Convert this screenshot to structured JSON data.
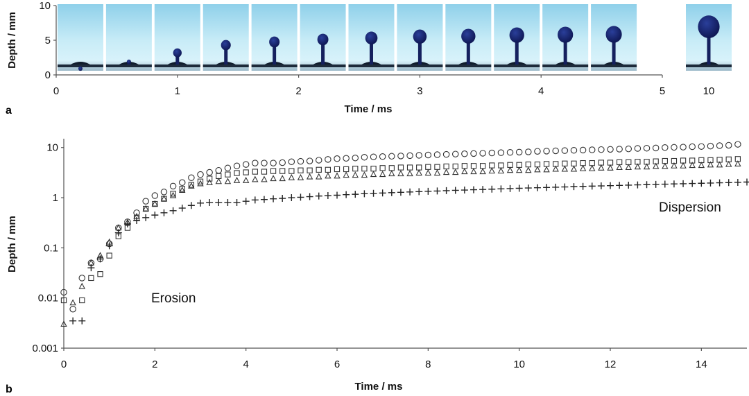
{
  "chart_data": [
    {
      "panel": "a",
      "type": "image_strip",
      "xlabel": "Time / ms",
      "ylabel": "Depth / mm",
      "x_ticks": [
        "0",
        "1",
        "2",
        "3",
        "4",
        "5"
      ],
      "extra_tick": "10",
      "y_ticks": [
        "0",
        "5",
        "10"
      ],
      "xlim": [
        0,
        5
      ],
      "ylim": [
        0,
        10
      ],
      "frames": [
        {
          "t": 0.2,
          "depth": 1.2,
          "head": 0.0
        },
        {
          "t": 0.6,
          "depth": 2.2,
          "head": 0.0
        },
        {
          "t": 1.0,
          "depth": 3.8,
          "head": 0.35
        },
        {
          "t": 1.4,
          "depth": 5.0,
          "head": 0.45
        },
        {
          "t": 1.8,
          "depth": 5.5,
          "head": 0.5
        },
        {
          "t": 2.2,
          "depth": 5.9,
          "head": 0.55
        },
        {
          "t": 2.6,
          "depth": 6.2,
          "head": 0.65
        },
        {
          "t": 3.0,
          "depth": 6.5,
          "head": 0.75
        },
        {
          "t": 3.4,
          "depth": 6.6,
          "head": 0.8
        },
        {
          "t": 3.8,
          "depth": 6.8,
          "head": 0.85
        },
        {
          "t": 4.2,
          "depth": 6.9,
          "head": 0.9
        },
        {
          "t": 4.6,
          "depth": 7.0,
          "head": 0.95
        },
        {
          "t": 10,
          "depth": 8.5,
          "head": 1.4
        }
      ]
    },
    {
      "panel": "b",
      "type": "scatter",
      "xlabel": "Time / ms",
      "ylabel": "Depth / mm",
      "yscale": "log",
      "xlim": [
        0,
        15
      ],
      "ylim": [
        0.001,
        15
      ],
      "x_ticks": [
        "0",
        "2",
        "4",
        "6",
        "8",
        "10",
        "12",
        "14"
      ],
      "y_ticks": [
        "0.001",
        "0.01",
        "0.1",
        "1",
        "10"
      ],
      "annotations": [
        "Erosion",
        "Dispersion"
      ],
      "series": [
        {
          "name": "circle",
          "marker": "circle",
          "x": [
            0,
            0.2,
            0.4,
            0.6,
            0.8,
            1.0,
            1.2,
            1.4,
            1.6,
            1.8,
            2.0,
            2.2,
            2.4,
            2.6,
            2.8,
            3.0,
            3.2,
            3.4,
            3.6,
            3.8,
            4.0,
            4.2,
            4.4,
            4.6,
            4.8,
            5.0,
            5.2,
            5.4,
            5.6,
            5.8,
            6.0,
            6.2,
            6.4,
            6.6,
            6.8,
            7.0,
            7.2,
            7.4,
            7.6,
            7.8,
            8.0,
            8.2,
            8.4,
            8.6,
            8.8,
            9.0,
            9.2,
            9.4,
            9.6,
            9.8,
            10.0,
            10.2,
            10.4,
            10.6,
            10.8,
            11.0,
            11.2,
            11.4,
            11.6,
            11.8,
            12.0,
            12.2,
            12.4,
            12.6,
            12.8,
            13.0,
            13.2,
            13.4,
            13.6,
            13.8,
            14.0,
            14.2,
            14.4,
            14.6,
            14.8
          ],
          "y": [
            0.013,
            0.006,
            0.025,
            0.05,
            0.06,
            0.12,
            0.25,
            0.33,
            0.5,
            0.85,
            1.1,
            1.3,
            1.7,
            2.0,
            2.5,
            2.9,
            3.2,
            3.5,
            3.9,
            4.3,
            4.6,
            4.9,
            4.9,
            4.9,
            5.0,
            5.2,
            5.3,
            5.4,
            5.6,
            5.8,
            6.0,
            6.1,
            6.2,
            6.4,
            6.5,
            6.6,
            6.7,
            6.8,
            6.9,
            7.0,
            7.1,
            7.2,
            7.3,
            7.4,
            7.5,
            7.6,
            7.7,
            7.8,
            7.9,
            8.0,
            8.1,
            8.2,
            8.4,
            8.5,
            8.6,
            8.7,
            8.8,
            8.9,
            9.0,
            9.1,
            9.2,
            9.3,
            9.4,
            9.6,
            9.7,
            9.8,
            10.0,
            10.1,
            10.2,
            10.4,
            10.5,
            10.7,
            10.9,
            11.1,
            11.6
          ]
        },
        {
          "name": "square",
          "marker": "square",
          "x": [
            0,
            0.4,
            0.6,
            0.8,
            1.0,
            1.2,
            1.4,
            1.6,
            1.8,
            2.0,
            2.2,
            2.4,
            2.6,
            2.8,
            3.0,
            3.2,
            3.4,
            3.6,
            3.8,
            4.0,
            4.2,
            4.4,
            4.6,
            4.8,
            5.0,
            5.2,
            5.4,
            5.6,
            5.8,
            6.0,
            6.2,
            6.4,
            6.6,
            6.8,
            7.0,
            7.2,
            7.4,
            7.6,
            7.8,
            8.0,
            8.2,
            8.4,
            8.6,
            8.8,
            9.0,
            9.2,
            9.4,
            9.6,
            9.8,
            10.0,
            10.2,
            10.4,
            10.6,
            10.8,
            11.0,
            11.2,
            11.4,
            11.6,
            11.8,
            12.0,
            12.2,
            12.4,
            12.6,
            12.8,
            13.0,
            13.2,
            13.4,
            13.6,
            13.8,
            14.0,
            14.2,
            14.4,
            14.6,
            14.8
          ],
          "y": [
            0.009,
            0.009,
            0.025,
            0.03,
            0.07,
            0.17,
            0.25,
            0.4,
            0.6,
            0.75,
            0.95,
            1.2,
            1.5,
            1.8,
            2.1,
            2.4,
            2.7,
            2.9,
            3.1,
            3.2,
            3.3,
            3.3,
            3.4,
            3.4,
            3.4,
            3.5,
            3.5,
            3.6,
            3.6,
            3.7,
            3.7,
            3.8,
            3.8,
            3.8,
            3.9,
            3.9,
            4.0,
            4.0,
            4.0,
            4.1,
            4.1,
            4.2,
            4.2,
            4.3,
            4.3,
            4.3,
            4.4,
            4.4,
            4.5,
            4.5,
            4.6,
            4.6,
            4.7,
            4.7,
            4.8,
            4.8,
            4.9,
            4.9,
            5.0,
            5.0,
            5.1,
            5.1,
            5.2,
            5.2,
            5.3,
            5.4,
            5.4,
            5.5,
            5.5,
            5.6,
            5.6,
            5.7,
            5.8,
            5.9
          ]
        },
        {
          "name": "triangle",
          "marker": "triangle",
          "x": [
            0,
            0.2,
            0.4,
            0.6,
            0.8,
            1.0,
            1.2,
            1.4,
            1.6,
            1.8,
            2.0,
            2.2,
            2.4,
            2.6,
            2.8,
            3.0,
            3.2,
            3.4,
            3.6,
            3.8,
            4.0,
            4.2,
            4.4,
            4.6,
            4.8,
            5.0,
            5.2,
            5.4,
            5.6,
            5.8,
            6.0,
            6.2,
            6.4,
            6.6,
            6.8,
            7.0,
            7.2,
            7.4,
            7.6,
            7.8,
            8.0,
            8.2,
            8.4,
            8.6,
            8.8,
            9.0,
            9.2,
            9.4,
            9.6,
            9.8,
            10.0,
            10.2,
            10.4,
            10.6,
            10.8,
            11.0,
            11.2,
            11.4,
            11.6,
            11.8,
            12.0,
            12.2,
            12.4,
            12.6,
            12.8,
            13.0,
            13.2,
            13.4,
            13.6,
            13.8,
            14.0,
            14.2,
            14.4,
            14.6,
            14.8
          ],
          "y": [
            0.003,
            0.008,
            0.017,
            0.05,
            0.07,
            0.13,
            0.25,
            0.32,
            0.42,
            0.6,
            0.75,
            0.95,
            1.1,
            1.4,
            1.7,
            1.9,
            2.0,
            2.1,
            2.1,
            2.2,
            2.2,
            2.3,
            2.3,
            2.4,
            2.4,
            2.5,
            2.5,
            2.6,
            2.6,
            2.7,
            2.7,
            2.8,
            2.8,
            2.8,
            2.9,
            2.9,
            3.0,
            3.0,
            3.0,
            3.1,
            3.1,
            3.1,
            3.2,
            3.2,
            3.3,
            3.3,
            3.3,
            3.4,
            3.4,
            3.5,
            3.5,
            3.5,
            3.6,
            3.6,
            3.7,
            3.7,
            3.7,
            3.8,
            3.8,
            3.9,
            3.9,
            4.0,
            4.0,
            4.1,
            4.1,
            4.2,
            4.2,
            4.3,
            4.3,
            4.4,
            4.4,
            4.5,
            4.5,
            4.6,
            4.7
          ]
        },
        {
          "name": "plus",
          "marker": "plus",
          "x": [
            0.2,
            0.4,
            0.6,
            0.8,
            1.0,
            1.2,
            1.4,
            1.6,
            1.8,
            2.0,
            2.2,
            2.4,
            2.6,
            2.8,
            3.0,
            3.2,
            3.4,
            3.6,
            3.8,
            4.0,
            4.2,
            4.4,
            4.6,
            4.8,
            5.0,
            5.2,
            5.4,
            5.6,
            5.8,
            6.0,
            6.2,
            6.4,
            6.6,
            6.8,
            7.0,
            7.2,
            7.4,
            7.6,
            7.8,
            8.0,
            8.2,
            8.4,
            8.6,
            8.8,
            9.0,
            9.2,
            9.4,
            9.6,
            9.8,
            10.0,
            10.2,
            10.4,
            10.6,
            10.8,
            11.0,
            11.2,
            11.4,
            11.6,
            11.8,
            12.0,
            12.2,
            12.4,
            12.6,
            12.8,
            13.0,
            13.2,
            13.4,
            13.6,
            13.8,
            14.0,
            14.2,
            14.4,
            14.6,
            14.8,
            15.0
          ],
          "y": [
            0.0035,
            0.0035,
            0.04,
            0.06,
            0.11,
            0.2,
            0.3,
            0.35,
            0.4,
            0.45,
            0.5,
            0.55,
            0.62,
            0.7,
            0.78,
            0.8,
            0.8,
            0.8,
            0.8,
            0.85,
            0.9,
            0.92,
            0.95,
            0.97,
            1.0,
            1.02,
            1.05,
            1.08,
            1.1,
            1.12,
            1.15,
            1.17,
            1.2,
            1.22,
            1.24,
            1.26,
            1.28,
            1.3,
            1.32,
            1.34,
            1.36,
            1.38,
            1.4,
            1.42,
            1.44,
            1.46,
            1.48,
            1.5,
            1.52,
            1.54,
            1.56,
            1.58,
            1.6,
            1.62,
            1.64,
            1.66,
            1.68,
            1.7,
            1.72,
            1.74,
            1.76,
            1.78,
            1.8,
            1.82,
            1.84,
            1.86,
            1.88,
            1.9,
            1.92,
            1.94,
            1.96,
            1.98,
            2.0,
            2.02,
            2.05
          ]
        }
      ]
    }
  ]
}
